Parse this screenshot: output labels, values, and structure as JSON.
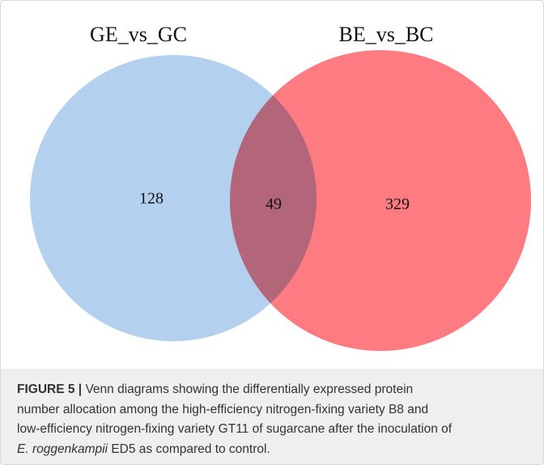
{
  "chart_data": {
    "type": "venn",
    "sets": [
      {
        "name": "GE_vs_GC",
        "color": "#b3d1ee",
        "value": 128
      },
      {
        "name": "BE_vs_BC",
        "color": "#ff7b82",
        "value": 329
      }
    ],
    "intersection": 49
  },
  "caption": {
    "label": "FIGURE 5 |",
    "lines": [
      " Venn diagrams showing the differentially expressed protein",
      "number allocation among the high-efficiency nitrogen-fixing variety B8 and",
      "low-efficiency nitrogen-fixing variety GT11 of sugarcane after the inoculation of"
    ],
    "last_line_italic": "E. roggenkampii",
    "last_line_rest": " ED5 as compared to control."
  }
}
